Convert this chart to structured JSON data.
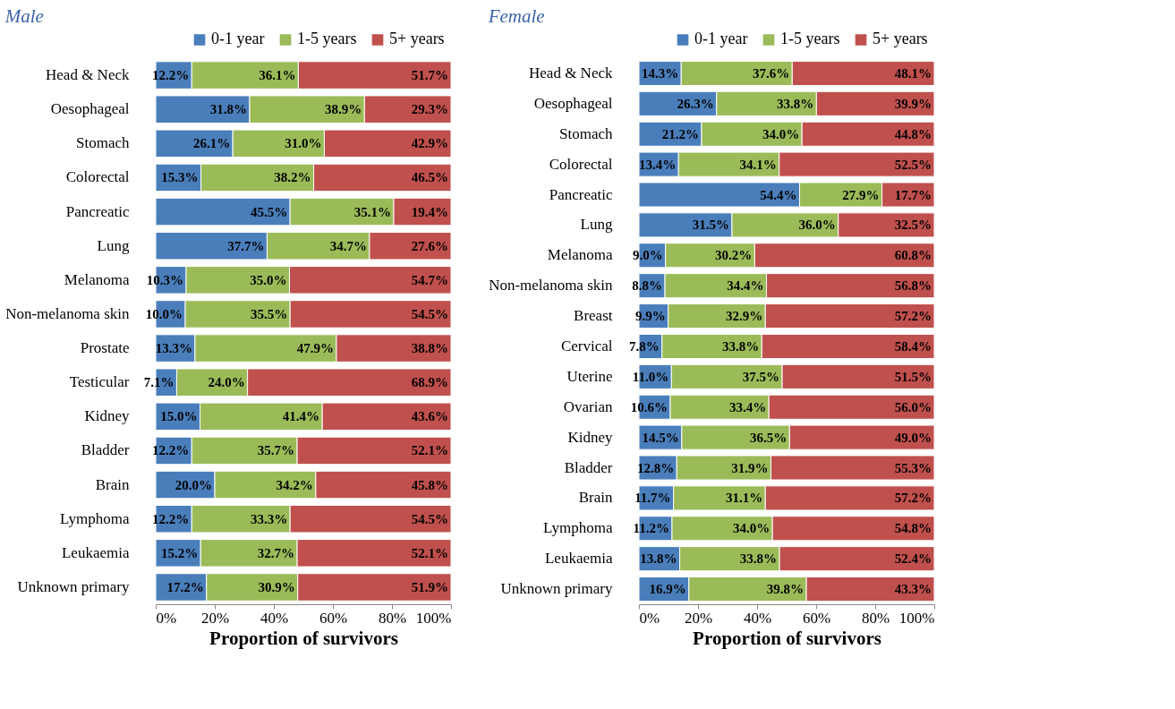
{
  "chart_data": [
    {
      "type": "bar",
      "orientation": "horizontal",
      "stacked": true,
      "title": "Male",
      "xlabel": "Proportion of survivors",
      "legend": "top right",
      "grid": false,
      "categories": [
        "Head & Neck",
        "Oesophageal",
        "Stomach",
        "Colorectal",
        "Pancreatic",
        "Lung",
        "Melanoma",
        "Non-melanoma skin",
        "Prostate",
        "Testicular",
        "Kidney",
        "Bladder",
        "Brain",
        "Lymphoma",
        "Leukaemia",
        "Unknown primary"
      ],
      "xlim": [
        0,
        100
      ],
      "xticks": [
        {
          "value": 0,
          "label": "0%"
        },
        {
          "value": 20,
          "label": "20%"
        },
        {
          "value": 40,
          "label": "40%"
        },
        {
          "value": 60,
          "label": "60%"
        },
        {
          "value": 80,
          "label": "80%"
        },
        {
          "value": 100,
          "label": "100%"
        }
      ],
      "series": [
        {
          "name": "0-1 year",
          "color": "#4a7ebb",
          "values": [
            12.2,
            31.8,
            26.1,
            15.3,
            45.5,
            37.7,
            10.3,
            10.0,
            13.3,
            7.1,
            15.0,
            12.2,
            20.0,
            12.2,
            15.2,
            17.2
          ],
          "value_labels": [
            "12.2%",
            "31.8%",
            "26.1%",
            "15.3%",
            "45.5%",
            "37.7%",
            "10.3%",
            "10.0%",
            "13.3%",
            "7.1%",
            "15.0%",
            "12.2%",
            "20.0%",
            "12.2%",
            "15.2%",
            "17.2%"
          ]
        },
        {
          "name": "1-5 years",
          "color": "#9bbb59",
          "values": [
            36.1,
            38.9,
            31.0,
            38.2,
            35.1,
            34.7,
            35.0,
            35.5,
            47.9,
            24.0,
            41.4,
            35.7,
            34.2,
            33.3,
            32.7,
            30.9
          ],
          "value_labels": [
            "36.1%",
            "38.9%",
            "31.0%",
            "38.2%",
            "35.1%",
            "34.7%",
            "35.0%",
            "35.5%",
            "47.9%",
            "24.0%",
            "41.4%",
            "35.7%",
            "34.2%",
            "33.3%",
            "32.7%",
            "30.9%"
          ]
        },
        {
          "name": "5+ years",
          "color": "#c0504d",
          "values": [
            51.7,
            29.3,
            42.9,
            46.5,
            19.4,
            27.6,
            54.7,
            54.5,
            38.8,
            68.9,
            43.6,
            52.1,
            45.8,
            54.5,
            52.1,
            51.9
          ],
          "value_labels": [
            "51.7%",
            "29.3%",
            "42.9%",
            "46.5%",
            "19.4%",
            "27.6%",
            "54.7%",
            "54.5%",
            "38.8%",
            "68.9%",
            "43.6%",
            "52.1%",
            "45.8%",
            "54.5%",
            "52.1%",
            "51.9%"
          ]
        }
      ]
    },
    {
      "type": "bar",
      "orientation": "horizontal",
      "stacked": true,
      "title": "Female",
      "xlabel": "Proportion of survivors",
      "legend": "top right",
      "grid": false,
      "categories": [
        "Head & Neck",
        "Oesophageal",
        "Stomach",
        "Colorectal",
        "Pancreatic",
        "Lung",
        "Melanoma",
        "Non-melanoma skin",
        "Breast",
        "Cervical",
        "Uterine",
        "Ovarian",
        "Kidney",
        "Bladder",
        "Brain",
        "Lymphoma",
        "Leukaemia",
        "Unknown primary"
      ],
      "xlim": [
        0,
        100
      ],
      "xticks": [
        {
          "value": 0,
          "label": "0%"
        },
        {
          "value": 20,
          "label": "20%"
        },
        {
          "value": 40,
          "label": "40%"
        },
        {
          "value": 60,
          "label": "60%"
        },
        {
          "value": 80,
          "label": "80%"
        },
        {
          "value": 100,
          "label": "100%"
        }
      ],
      "series": [
        {
          "name": "0-1 year",
          "color": "#4a7ebb",
          "values": [
            14.3,
            26.3,
            21.2,
            13.4,
            54.4,
            31.5,
            9.0,
            8.8,
            9.9,
            7.8,
            11.0,
            10.6,
            14.5,
            12.8,
            11.7,
            11.2,
            13.8,
            16.9
          ],
          "value_labels": [
            "14.3%",
            "26.3%",
            "21.2%",
            "13.4%",
            "54.4%",
            "31.5%",
            "9.0%",
            "8.8%",
            "9.9%",
            "7.8%",
            "11.0%",
            "10.6%",
            "14.5%",
            "12.8%",
            "11.7%",
            "11.2%",
            "13.8%",
            "16.9%"
          ]
        },
        {
          "name": "1-5 years",
          "color": "#9bbb59",
          "values": [
            37.6,
            33.8,
            34.0,
            34.1,
            27.9,
            36.0,
            30.2,
            34.4,
            32.9,
            33.8,
            37.5,
            33.4,
            36.5,
            31.9,
            31.1,
            34.0,
            33.8,
            39.8
          ],
          "value_labels": [
            "37.6%",
            "33.8%",
            "34.0%",
            "34.1%",
            "27.9%",
            "36.0%",
            "30.2%",
            "34.4%",
            "32.9%",
            "33.8%",
            "37.5%",
            "33.4%",
            "36.5%",
            "31.9%",
            "31.1%",
            "34.0%",
            "33.8%",
            "39.8%"
          ]
        },
        {
          "name": "5+ years",
          "color": "#c0504d",
          "values": [
            48.1,
            39.9,
            44.8,
            52.5,
            17.7,
            32.5,
            60.8,
            56.8,
            57.2,
            58.4,
            51.5,
            56.0,
            49.0,
            55.3,
            57.2,
            54.8,
            52.4,
            43.3
          ],
          "value_labels": [
            "48.1%",
            "39.9%",
            "44.8%",
            "52.5%",
            "17.7%",
            "32.5%",
            "60.8%",
            "56.8%",
            "57.2%",
            "58.4%",
            "51.5%",
            "56.0%",
            "49.0%",
            "55.3%",
            "57.2%",
            "54.8%",
            "52.4%",
            "43.3%"
          ]
        }
      ]
    }
  ]
}
